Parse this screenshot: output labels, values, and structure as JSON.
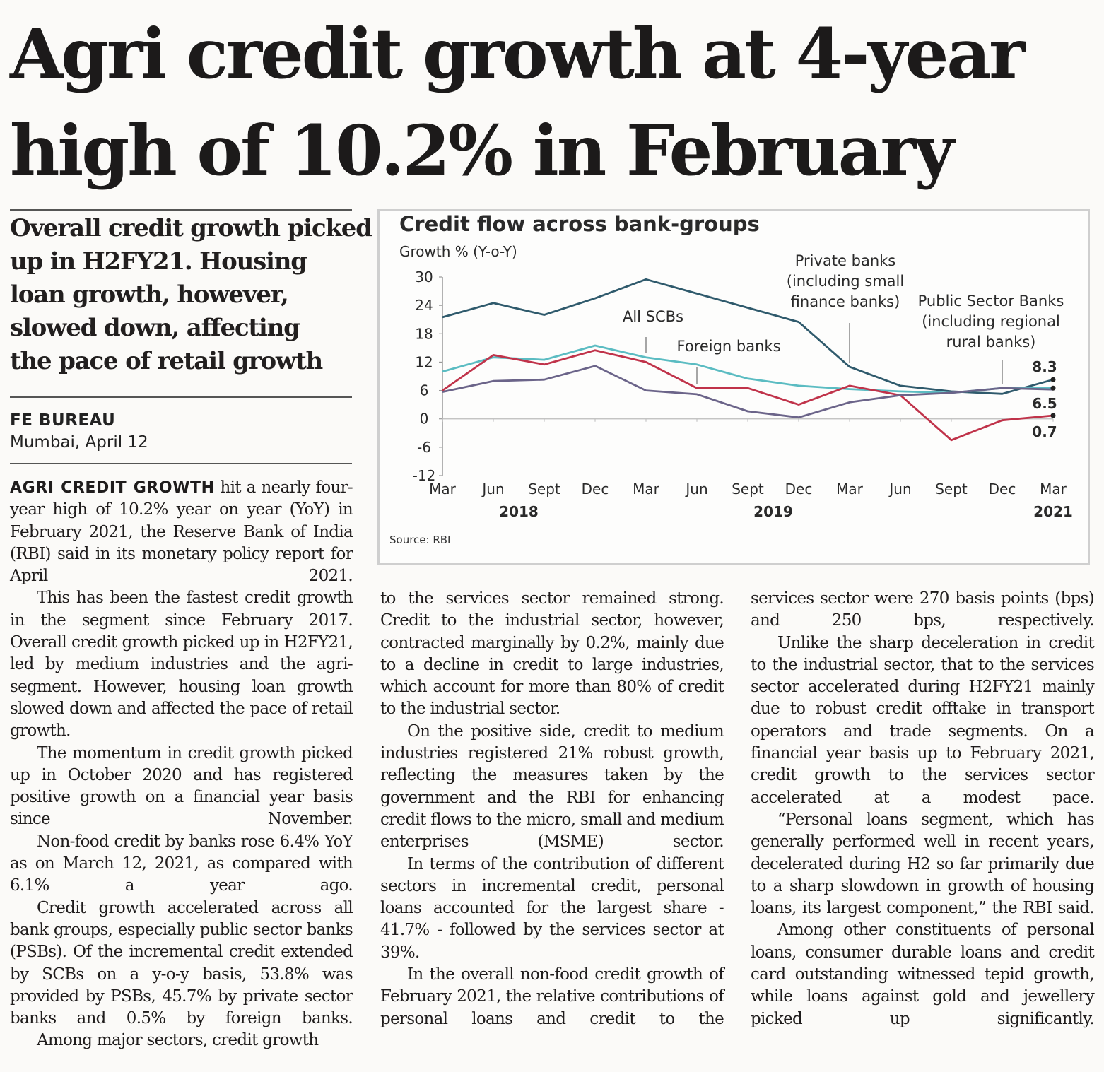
{
  "headline": {
    "line1": "Agri credit growth at 4-year",
    "line2": "high of 10.2% in February"
  },
  "deck": {
    "lines": [
      "Overall credit growth picked",
      "up in H2FY21. Housing",
      "loan growth, however,",
      "slowed down, affecting",
      "the pace of retail growth"
    ]
  },
  "byline": {
    "name": "FE BUREAU",
    "dateline": "Mumbai, April 12"
  },
  "body": {
    "lead_caps": "AGRI CREDIT GROWTH",
    "col1": [
      "hit a nearly four-year high of 10.2% year on year (YoY) in February 2021, the Reserve Bank of India (RBI) said in its monetary policy report for April 2021.",
      "This has been the fastest credit growth in the segment since February 2017. Overall credit growth picked up in H2FY21, led by medium industries and the agri-segment. However, housing loan growth slowed down and affected the pace of retail growth.",
      "The momentum in credit growth picked up in October 2020 and has registered positive growth on a financial year basis since November.",
      "Non-food credit by banks rose 6.4% YoY as on March 12, 2021, as compared with 6.1% a year ago.",
      "Credit growth accelerated across all bank groups, especially public sector banks (PSBs). Of the incremental credit extended by SCBs on a y-o-y basis, 53.8% was provided by PSBs, 45.7% by private sector banks and 0.5% by foreign banks.",
      "Among major sectors, credit growth"
    ],
    "col2": [
      "to the services sector remained strong. Credit to the industrial sector, however, contracted marginally by 0.2%, mainly due to a decline in credit to large industries, which account for more than 80% of credit to the industrial sector.",
      "On the positive side, credit to medium industries registered 21% robust growth, reflecting the measures taken by the government and the RBI for enhancing credit flows to the micro, small and medium enterprises (MSME) sector.",
      "In terms of the contribution of different sectors in incremental credit, personal loans accounted for the largest share - 41.7% - followed by the services sector at 39%.",
      "In the overall non-food credit growth of February 2021, the relative contributions of personal loans and credit to the"
    ],
    "col3": [
      "services sector were 270 basis points (bps) and 250 bps, respectively.",
      "Unlike the sharp deceleration in credit to the industrial sector, that to the services sector accelerated during H2FY21 mainly due to robust credit offtake in transport operators and trade segments. On a financial year basis up to February 2021, credit growth to the services sector accelerated at a modest pace.",
      "“Personal loans segment, which has generally performed well in recent years, decelerated during H2 so far primarily due to a sharp slowdown in growth of housing loans, its largest component,” the RBI said.",
      "Among other constituents of personal loans, consumer durable loans and credit card outstanding witnessed tepid growth, while loans against gold and jewellery picked up significantly."
    ]
  },
  "chart_data": {
    "type": "line",
    "title": "Credit flow across bank-groups",
    "ylabel": "Growth % (Y-o-Y)",
    "source": "Source: RBI",
    "ylim": [
      -12,
      30
    ],
    "yticks": [
      30,
      24,
      18,
      12,
      6,
      0,
      -6,
      -12
    ],
    "categories": [
      "Mar",
      "Jun",
      "Sept",
      "Dec",
      "Mar",
      "Jun",
      "Sept",
      "Dec",
      "Mar",
      "Jun",
      "Sept",
      "Dec",
      "Mar"
    ],
    "years": [
      {
        "label": "2018",
        "at": 1.5
      },
      {
        "label": "2019",
        "at": 6.5
      },
      {
        "label": "2021",
        "at": 12
      }
    ],
    "series": [
      {
        "name": "Private banks (including small finance banks)",
        "color": "#2f5a6c",
        "values": [
          21.5,
          24.5,
          22.0,
          25.5,
          29.5,
          26.5,
          23.5,
          20.5,
          11.0,
          7.0,
          5.8,
          5.3,
          8.3
        ]
      },
      {
        "name": "All SCBs",
        "color": "#5bbcc2",
        "values": [
          10.0,
          13.0,
          12.5,
          15.5,
          13.0,
          11.5,
          8.5,
          7.0,
          6.3,
          5.8,
          5.5,
          6.5,
          6.5
        ]
      },
      {
        "name": "Foreign banks",
        "color": "#c0334a",
        "values": [
          6.0,
          13.5,
          11.5,
          14.5,
          12.0,
          6.5,
          6.5,
          3.0,
          7.0,
          5.0,
          -4.5,
          -0.3,
          0.7
        ]
      },
      {
        "name": "Public Sector Banks (including regional rural banks)",
        "color": "#6b6489",
        "values": [
          5.7,
          8.0,
          8.3,
          11.2,
          6.0,
          5.2,
          1.6,
          0.3,
          3.5,
          5.0,
          5.5,
          6.5,
          6.2
        ]
      }
    ],
    "annotations": [
      {
        "text": [
          "All SCBs"
        ],
        "point": 4
      },
      {
        "text": [
          "Foreign banks"
        ],
        "point": 5
      },
      {
        "text": [
          "Private banks",
          "(including small",
          "finance banks)"
        ],
        "point": 8
      },
      {
        "text": [
          "Public Sector Banks",
          "(including regional",
          "rural banks)"
        ],
        "point": 11
      }
    ],
    "end_labels": [
      "8.3",
      "6.5",
      "0.7"
    ]
  }
}
